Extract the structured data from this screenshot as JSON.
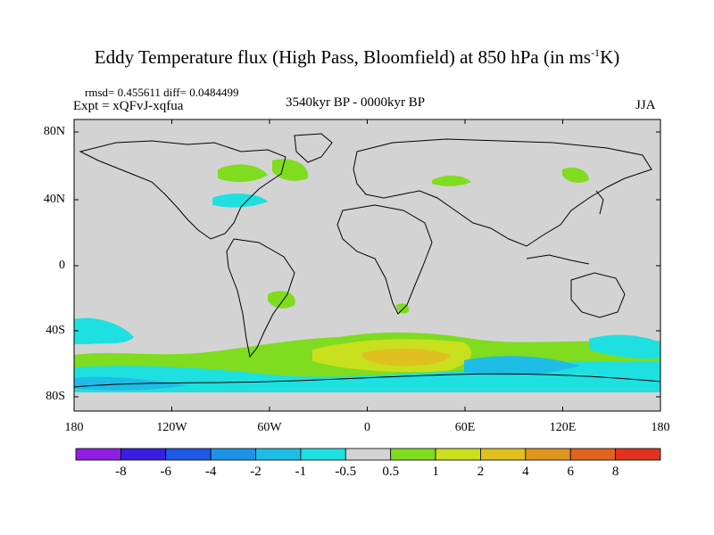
{
  "title": {
    "main": "Eddy Temperature flux (High Pass, Bloomfield) at 850 hPa (in ms",
    "exponent": "-1",
    "unit_tail": "K)"
  },
  "stats": "rmsd= 0.455611 diff= 0.0484499",
  "experiment": "Expt = xQFvJ-xqfua",
  "period": "3540kyr BP - 0000kyr BP",
  "season": "JJA",
  "lon_labels": [
    "180",
    "120W",
    "60W",
    "0",
    "60E",
    "120E",
    "180"
  ],
  "lat_labels": [
    "80N",
    "40N",
    "0",
    "40S",
    "80S"
  ],
  "colorbar": {
    "labels": [
      "-8",
      "-6",
      "-4",
      "-2",
      "-1",
      "-0.5",
      "0.5",
      "1",
      "2",
      "4",
      "6",
      "8"
    ],
    "colors": [
      "#8f1fe0",
      "#3a1ee0",
      "#1e5ae6",
      "#1e93e6",
      "#1ebde6",
      "#1ee0e0",
      "#d3d3d3",
      "#7fdc1e",
      "#c8e01e",
      "#e0c01e",
      "#e0961e",
      "#e0641e",
      "#e0321e"
    ]
  },
  "map_colors": {
    "ocean": "#d3d3d3",
    "coast": "#000000"
  }
}
